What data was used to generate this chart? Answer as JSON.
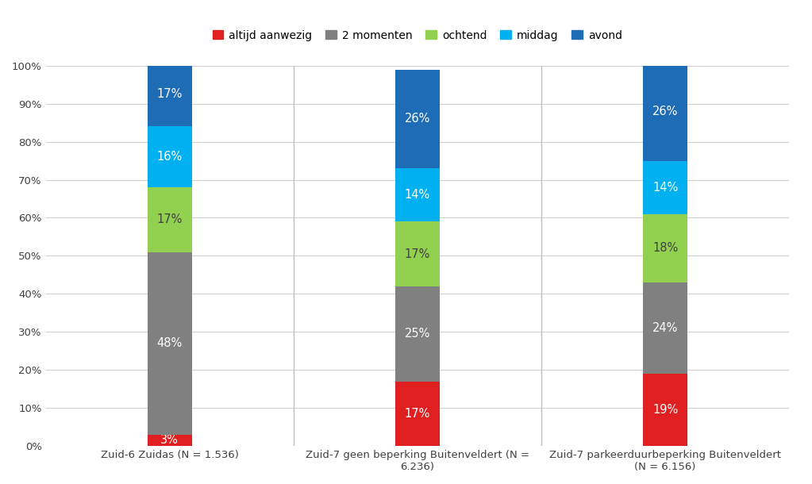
{
  "categories": [
    "Zuid-6 Zuidas (N = 1.536)",
    "Zuid-7 geen beperking Buitenveldert (N =\n6.236)",
    "Zuid-7 parkeerduurbeperking Buitenveldert\n(N = 6.156)"
  ],
  "series": [
    {
      "name": "altijd aanwezig",
      "color": "#e02020",
      "values": [
        3,
        17,
        19
      ],
      "labels": [
        "3%",
        "17%",
        "19%"
      ]
    },
    {
      "name": "2 momenten",
      "color": "#808080",
      "values": [
        48,
        25,
        24
      ],
      "labels": [
        "48%",
        "25%",
        "24%"
      ]
    },
    {
      "name": "ochtend",
      "color": "#92d050",
      "values": [
        17,
        17,
        18
      ],
      "labels": [
        "17%",
        "17%",
        "18%"
      ]
    },
    {
      "name": "middag",
      "color": "#00b0f0",
      "values": [
        16,
        14,
        14
      ],
      "labels": [
        "16%",
        "14%",
        "14%"
      ]
    },
    {
      "name": "avond",
      "color": "#1e6cb5",
      "values": [
        17,
        26,
        26
      ],
      "labels": [
        "17%",
        "26%",
        "26%"
      ]
    }
  ],
  "yticks": [
    0,
    10,
    20,
    30,
    40,
    50,
    60,
    70,
    80,
    90,
    100
  ],
  "ytick_labels": [
    "0%",
    "10%",
    "20%",
    "30%",
    "40%",
    "50%",
    "60%",
    "70%",
    "80%",
    "90%",
    "100%"
  ],
  "background_color": "#ffffff",
  "grid_color": "#d0d0d0",
  "bar_width": 0.18,
  "figsize": [
    10.23,
    6.1
  ],
  "dpi": 100,
  "separator_color": "#c0c0c0",
  "text_label_color_dark": "#404040",
  "ochtend_label_color": "#404040"
}
